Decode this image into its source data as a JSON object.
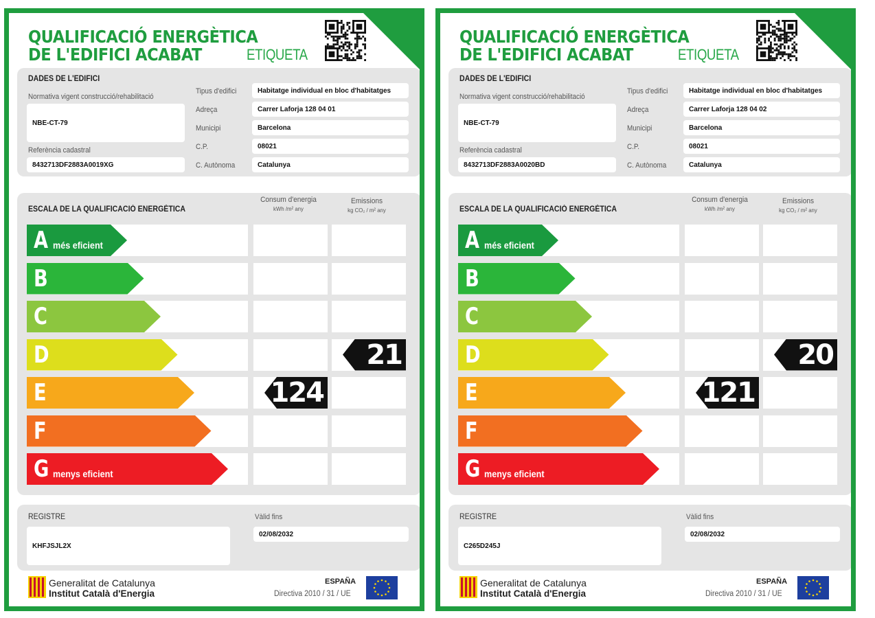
{
  "labels": [
    {
      "title_line1": "QUALIFICACIÓ ENERGÈTICA",
      "title_line2": "DE L'EDIFICI ACABAT",
      "etiqueta": "ETIQUETA",
      "building": {
        "heading": "DADES DE L'EDIFICI",
        "normativa_label": "Normativa vigent construcció/rehabilitació",
        "normativa_value": "NBE-CT-79",
        "ref_label": "Referència cadastral",
        "ref_value": "8432713DF2883A0019XG",
        "tipus_label": "Tipus d'edifici",
        "tipus_value": "Habitatge individual en bloc d'habitatges",
        "adreca_label": "Adreça",
        "adreca_value": "Carrer Laforja 128 04 01",
        "municipi_label": "Municipi",
        "municipi_value": "Barcelona",
        "cp_label": "C.P.",
        "cp_value": "08021",
        "ca_label": "C. Autònoma",
        "ca_value": "Catalunya"
      },
      "scale": {
        "heading": "ESCALA DE LA QUALIFICACIÓ ENERGÈTICA",
        "col1_title": "Consum d'energia",
        "col1_unit": "kWh /m² any",
        "col2_title": "Emissions",
        "col2_unit": "kg CO₂ / m² any",
        "consum_value": "124",
        "consum_class": "E",
        "emissions_value": "21",
        "emissions_class": "D"
      },
      "registre": {
        "heading": "REGISTRE",
        "value": "KHFJSJL2X",
        "valid_label": "Vàlid fins",
        "valid_value": "02/08/2032"
      },
      "footer": {
        "gen1": "Generalitat de Catalunya",
        "gen2": "Institut Català d'Energia",
        "espana": "ESPAÑA",
        "directiva": "Directiva 2010 / 31 / UE"
      }
    },
    {
      "title_line1": "QUALIFICACIÓ ENERGÈTICA",
      "title_line2": "DE L'EDIFICI ACABAT",
      "etiqueta": "ETIQUETA",
      "building": {
        "heading": "DADES DE L'EDIFICI",
        "normativa_label": "Normativa vigent construcció/rehabilitació",
        "normativa_value": "NBE-CT-79",
        "ref_label": "Referència cadastral",
        "ref_value": "8432713DF2883A0020BD",
        "tipus_label": "Tipus d'edifici",
        "tipus_value": "Habitatge individual en bloc d'habitatges",
        "adreca_label": "Adreça",
        "adreca_value": "Carrer Laforja 128 04 02",
        "municipi_label": "Municipi",
        "municipi_value": "Barcelona",
        "cp_label": "C.P.",
        "cp_value": "08021",
        "ca_label": "C. Autònoma",
        "ca_value": "Catalunya"
      },
      "scale": {
        "heading": "ESCALA DE LA QUALIFICACIÓ ENERGÈTICA",
        "col1_title": "Consum d'energia",
        "col1_unit": "kWh /m² any",
        "col2_title": "Emissions",
        "col2_unit": "kg CO₂ / m² any",
        "consum_value": "121",
        "consum_class": "E",
        "emissions_value": "20",
        "emissions_class": "D"
      },
      "registre": {
        "heading": "REGISTRE",
        "value": "C265D245J",
        "valid_label": "Vàlid fins",
        "valid_value": "02/08/2032"
      },
      "footer": {
        "gen1": "Generalitat de Catalunya",
        "gen2": "Institut Català d'Energia",
        "espana": "ESPAÑA",
        "directiva": "Directiva 2010 / 31 / UE"
      }
    }
  ],
  "classes": [
    {
      "letter": "A",
      "sub": "més eficient",
      "color": "#1a9a3f"
    },
    {
      "letter": "B",
      "sub": "",
      "color": "#2bb53a"
    },
    {
      "letter": "C",
      "sub": "",
      "color": "#8cc63f"
    },
    {
      "letter": "D",
      "sub": "",
      "color": "#ddde1c"
    },
    {
      "letter": "E",
      "sub": "",
      "color": "#f7a81b"
    },
    {
      "letter": "F",
      "sub": "",
      "color": "#f26f21"
    },
    {
      "letter": "G",
      "sub": "menys eficient",
      "color": "#ed1c24"
    }
  ],
  "theme": {
    "brand_green": "#1f9d3f",
    "panel_gray": "#e5e5e5",
    "badge_black": "#111111"
  }
}
